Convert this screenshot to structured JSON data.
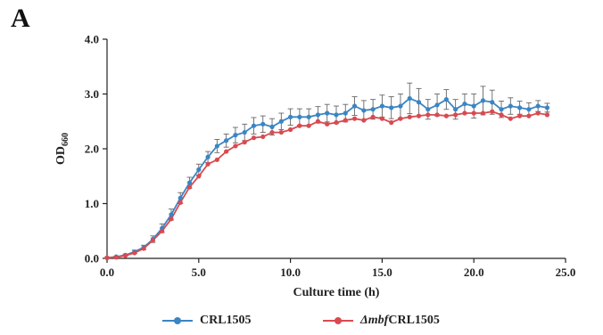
{
  "panel_label": "A",
  "chart_data": {
    "type": "line",
    "title": "",
    "ylabel_main": "OD",
    "ylabel_sub": "660",
    "xlabel": "Culture time (h)",
    "xlim": [
      0,
      25
    ],
    "ylim": [
      0,
      4
    ],
    "xticks": [
      "0.0",
      "5.0",
      "10.0",
      "15.0",
      "20.0",
      "25.0"
    ],
    "yticks": [
      "0.0",
      "1.0",
      "2.0",
      "3.0",
      "4.0"
    ],
    "grid": false,
    "legend_position": "bottom",
    "colors": {
      "s1": "#3a85c4",
      "s2": "#d94a50",
      "errorbar": "#666666",
      "axis": "#222222"
    },
    "x": [
      0,
      0.5,
      1,
      1.5,
      2,
      2.5,
      3,
      3.5,
      4,
      4.5,
      5,
      5.5,
      6,
      6.5,
      7,
      7.5,
      8,
      8.5,
      9,
      9.5,
      10,
      10.5,
      11,
      11.5,
      12,
      12.5,
      13,
      13.5,
      14,
      14.5,
      15,
      15.5,
      16,
      16.5,
      17,
      17.5,
      18,
      18.5,
      19,
      19.5,
      20,
      20.5,
      21,
      21.5,
      22,
      22.5,
      23,
      23.5,
      24
    ],
    "series": [
      {
        "name_main": "CRL1505",
        "name_italic": "",
        "color_key": "s1",
        "values": [
          0.01,
          0.03,
          0.06,
          0.12,
          0.2,
          0.35,
          0.55,
          0.8,
          1.1,
          1.38,
          1.62,
          1.85,
          2.05,
          2.15,
          2.25,
          2.3,
          2.42,
          2.45,
          2.4,
          2.5,
          2.58,
          2.58,
          2.58,
          2.62,
          2.65,
          2.62,
          2.65,
          2.78,
          2.7,
          2.72,
          2.78,
          2.75,
          2.78,
          2.92,
          2.85,
          2.72,
          2.8,
          2.9,
          2.72,
          2.82,
          2.78,
          2.88,
          2.85,
          2.72,
          2.78,
          2.75,
          2.72,
          2.78,
          2.75
        ],
        "errors": [
          0.01,
          0.01,
          0.02,
          0.03,
          0.04,
          0.06,
          0.08,
          0.1,
          0.1,
          0.1,
          0.1,
          0.1,
          0.12,
          0.12,
          0.14,
          0.15,
          0.15,
          0.15,
          0.15,
          0.15,
          0.15,
          0.15,
          0.15,
          0.15,
          0.16,
          0.16,
          0.16,
          0.17,
          0.18,
          0.18,
          0.2,
          0.2,
          0.22,
          0.28,
          0.25,
          0.18,
          0.2,
          0.18,
          0.18,
          0.18,
          0.22,
          0.26,
          0.22,
          0.15,
          0.15,
          0.12,
          0.12,
          0.1,
          0.08
        ]
      },
      {
        "name_main": "CRL1505",
        "name_italic": "Δmbf",
        "color_key": "s2",
        "values": [
          0.01,
          0.02,
          0.05,
          0.1,
          0.18,
          0.33,
          0.5,
          0.72,
          1.02,
          1.3,
          1.5,
          1.72,
          1.8,
          1.95,
          2.05,
          2.12,
          2.2,
          2.22,
          2.3,
          2.3,
          2.35,
          2.42,
          2.42,
          2.5,
          2.45,
          2.48,
          2.52,
          2.55,
          2.52,
          2.58,
          2.55,
          2.48,
          2.55,
          2.58,
          2.6,
          2.62,
          2.62,
          2.6,
          2.62,
          2.65,
          2.65,
          2.65,
          2.68,
          2.62,
          2.55,
          2.6,
          2.6,
          2.65,
          2.62
        ]
      }
    ]
  }
}
